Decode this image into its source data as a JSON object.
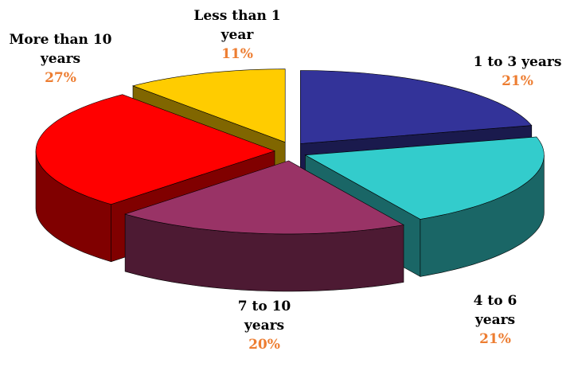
{
  "chart_data": {
    "type": "pie3d",
    "categories": [
      "1 to 3 years",
      "4 to 6 years",
      "7 to 10 years",
      "More than 10 years",
      "Less than 1 year"
    ],
    "values": [
      21,
      21,
      20,
      27,
      11
    ],
    "value_labels": [
      "21%",
      "21%",
      "20%",
      "27%",
      "11%"
    ],
    "colors": [
      "#333399",
      "#33CCCC",
      "#993366",
      "#FF0000",
      "#FFCC00"
    ]
  }
}
